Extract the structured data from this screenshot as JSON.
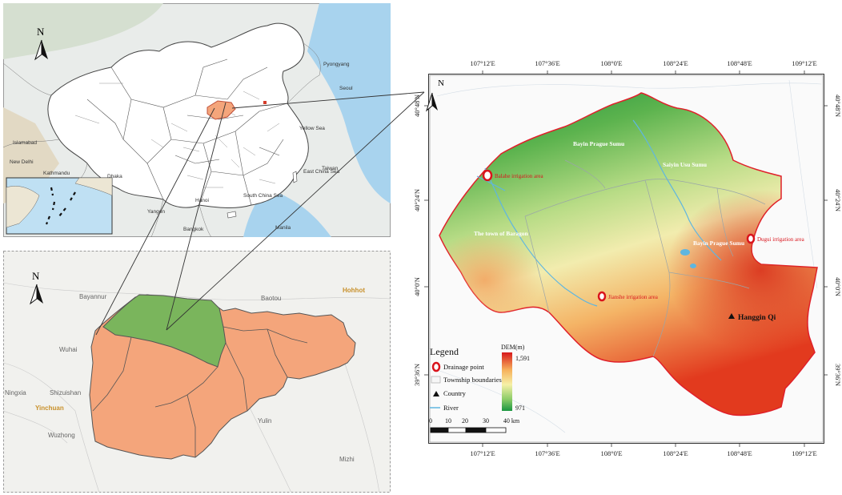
{
  "north_label": "N",
  "china_map": {
    "places": [
      "Pyongyang",
      "Seoul",
      "Yellow Sea",
      "Taiwan",
      "Islamabad",
      "New Delhi",
      "Kathmandu",
      "Dhaka",
      "Yangon",
      "Hanoi",
      "East China Sea",
      "South China Sea",
      "Manila",
      "Bangkok"
    ]
  },
  "inner_mongolia_map": {
    "places": [
      "Bayannur",
      "Baotou",
      "Hohhot",
      "Wuhai",
      "Shizuishan",
      "Yinchuan",
      "Wuzhong",
      "Yulin",
      "Mizhi",
      "Ningxia"
    ],
    "fill_color": "#f4a57b",
    "study_fill_color": "#7ab55c"
  },
  "study_map": {
    "top_ticks": [
      "107°12'E",
      "107°36'E",
      "108°0'E",
      "108°24'E",
      "108°48'E",
      "109°12'E"
    ],
    "bottom_ticks": [
      "107°12'E",
      "107°36'E",
      "108°0'E",
      "108°24'E",
      "108°48'E",
      "109°12'E"
    ],
    "left_ticks": [
      "40°48'N",
      "40°24'N",
      "40°0'N",
      "39°36'N"
    ],
    "right_ticks": [
      "40°48'N",
      "40°24'N",
      "40°0'N",
      "39°36'N"
    ],
    "regions": [
      "Bayin Prague Sumu",
      "Saiyin Usu Sumu",
      "The town of Baragon",
      "Bayin Prague Sumu"
    ],
    "irrigation_areas": [
      "Balahe irrigation area",
      "Dugui irrigation area",
      "Jianshe irrigation area"
    ],
    "county": "Hanggin Qi",
    "boundary_color": "#e0202a",
    "river_color": "#5fb6e0"
  },
  "legend": {
    "title": "Legend",
    "items": [
      "Drainage point",
      "Township boundaries",
      "Country",
      "River"
    ],
    "dem_title": "DEM(m)",
    "dem_max": "1,591",
    "dem_min": "971",
    "scale_labels": [
      "0",
      "10",
      "20",
      "30",
      "40 km"
    ]
  }
}
